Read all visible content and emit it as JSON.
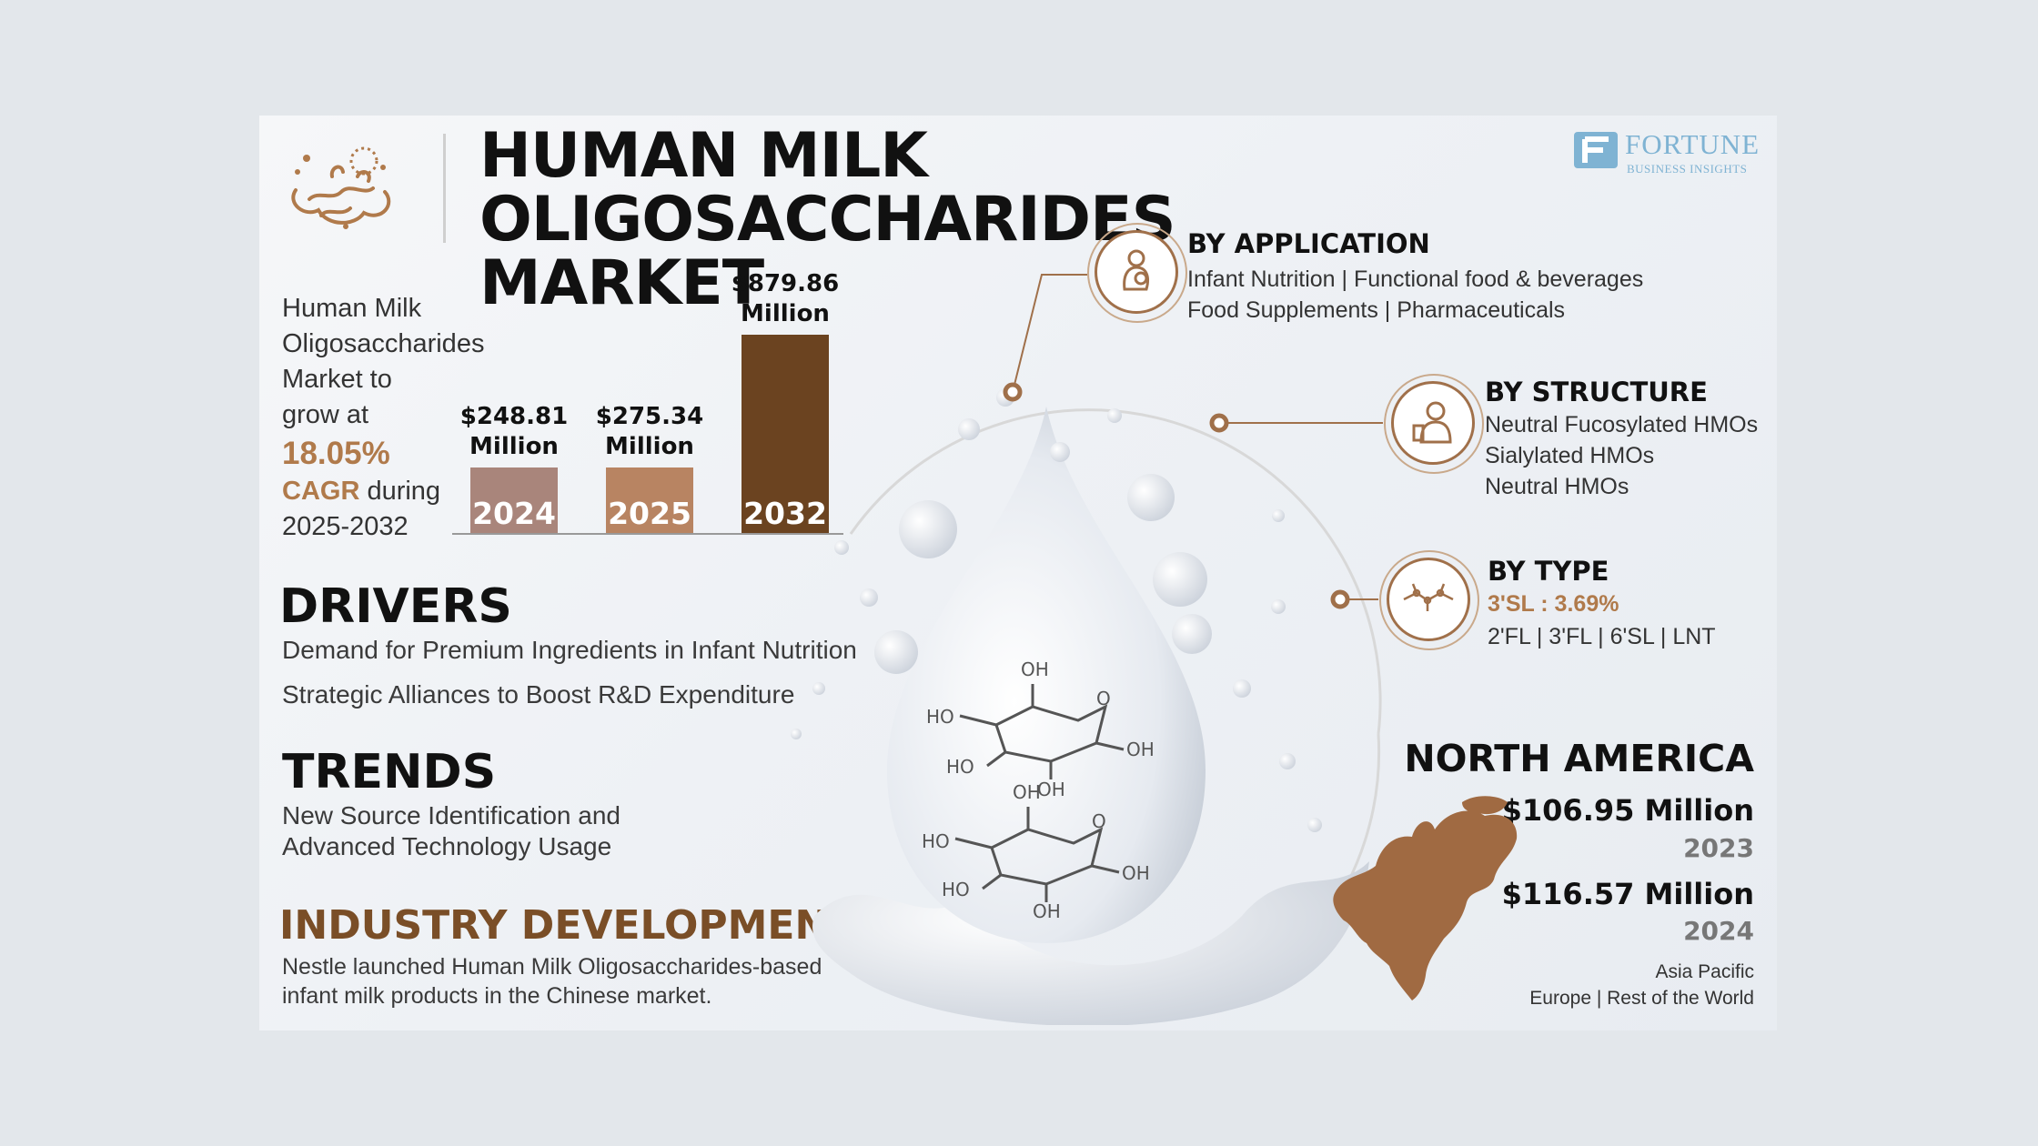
{
  "header": {
    "title_line1": "HUMAN MILK OLIGOSACCHARIDES",
    "title_line2": "MARKET",
    "brand_name": "FORTUNE",
    "brand_sub": "BUSINESS INSIGHTS"
  },
  "intro": {
    "line1": "Human Milk",
    "line2": "Oligosaccharides",
    "line3": "Market to",
    "line4": "grow at",
    "cagr_value": "18.05%",
    "cagr_label": "CAGR",
    "during": " during",
    "period": "2025-2032"
  },
  "chart_data": {
    "type": "bar",
    "categories": [
      "2024",
      "2025",
      "2032"
    ],
    "values": [
      248.81,
      275.34,
      879.86
    ],
    "labels": [
      "$248.81",
      "$275.34",
      "$879.86"
    ],
    "unit": "Million",
    "colors": [
      "#a9857b",
      "#b88462",
      "#6b4320"
    ]
  },
  "drivers": {
    "heading": "DRIVERS",
    "items": [
      "Demand for Premium Ingredients in Infant Nutrition",
      "Strategic Alliances to Boost R&D Expenditure"
    ]
  },
  "trends": {
    "heading": "TRENDS",
    "line1": "New Source Identification and",
    "line2": "Advanced Technology Usage"
  },
  "industry": {
    "heading": "INDUSTRY DEVELOPMENT",
    "line1": "Nestle launched Human Milk Oligosaccharides-based",
    "line2": "infant milk products in the Chinese market."
  },
  "application": {
    "heading": "BY APPLICATION",
    "line1": "Infant Nutrition  |  Functional food & beverages",
    "line2": "Food Supplements  |  Pharmaceuticals",
    "icon": "mother-baby-icon"
  },
  "structure": {
    "heading": "BY STRUCTURE",
    "items": [
      "Neutral Fucosylated HMOs",
      "Sialylated HMOs",
      "Neutral HMOs"
    ],
    "icon": "scientist-icon"
  },
  "type": {
    "heading": "BY TYPE",
    "highlight": "3'SL : 3.69%",
    "line": "2'FL  |  3'FL  |  6'SL  |  LNT",
    "icon": "molecule-icon"
  },
  "molecule": {
    "oh": "OH",
    "ho": "HO",
    "o": "O"
  },
  "north_america": {
    "heading": "NORTH AMERICA",
    "value_2023": "$106.95 Million",
    "year_2023": "2023",
    "value_2024": "$116.57 Million",
    "year_2024": "2024",
    "other1": "Asia Pacific",
    "other2": "Europe  |  Rest of the World"
  },
  "colors": {
    "accent": "#b07a4b",
    "dark_brown": "#6b4320",
    "brand_blue": "#7fb3d3"
  }
}
